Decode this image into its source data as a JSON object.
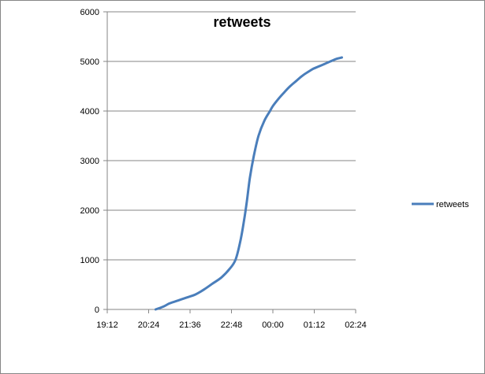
{
  "chart_data": {
    "type": "line",
    "title": "retweets",
    "xlabel": "",
    "ylabel": "",
    "xlim": [
      "19:12",
      "02:24"
    ],
    "ylim": [
      0,
      6000
    ],
    "x_ticks": [
      "19:12",
      "20:24",
      "21:36",
      "22:48",
      "00:00",
      "01:12",
      "02:24"
    ],
    "y_ticks": [
      0,
      1000,
      2000,
      3000,
      4000,
      5000,
      6000
    ],
    "grid": "horizontal",
    "legend_position": "right",
    "series": [
      {
        "name": "retweets",
        "color": "#4a7ebb",
        "x": [
          "20:36",
          "20:50",
          "21:00",
          "21:15",
          "21:30",
          "21:45",
          "22:00",
          "22:15",
          "22:30",
          "22:45",
          "22:55",
          "23:03",
          "23:10",
          "23:15",
          "23:20",
          "23:27",
          "23:35",
          "23:45",
          "23:55",
          "00:00",
          "00:10",
          "00:20",
          "00:30",
          "00:40",
          "00:50",
          "01:00",
          "01:10",
          "01:20",
          "01:30",
          "01:40",
          "01:50",
          "02:00"
        ],
        "values": [
          0,
          60,
          120,
          180,
          240,
          300,
          400,
          520,
          640,
          820,
          1000,
          1350,
          1800,
          2200,
          2650,
          3100,
          3500,
          3800,
          4000,
          4100,
          4250,
          4380,
          4500,
          4600,
          4700,
          4780,
          4850,
          4900,
          4950,
          5000,
          5050,
          5080
        ]
      }
    ]
  }
}
